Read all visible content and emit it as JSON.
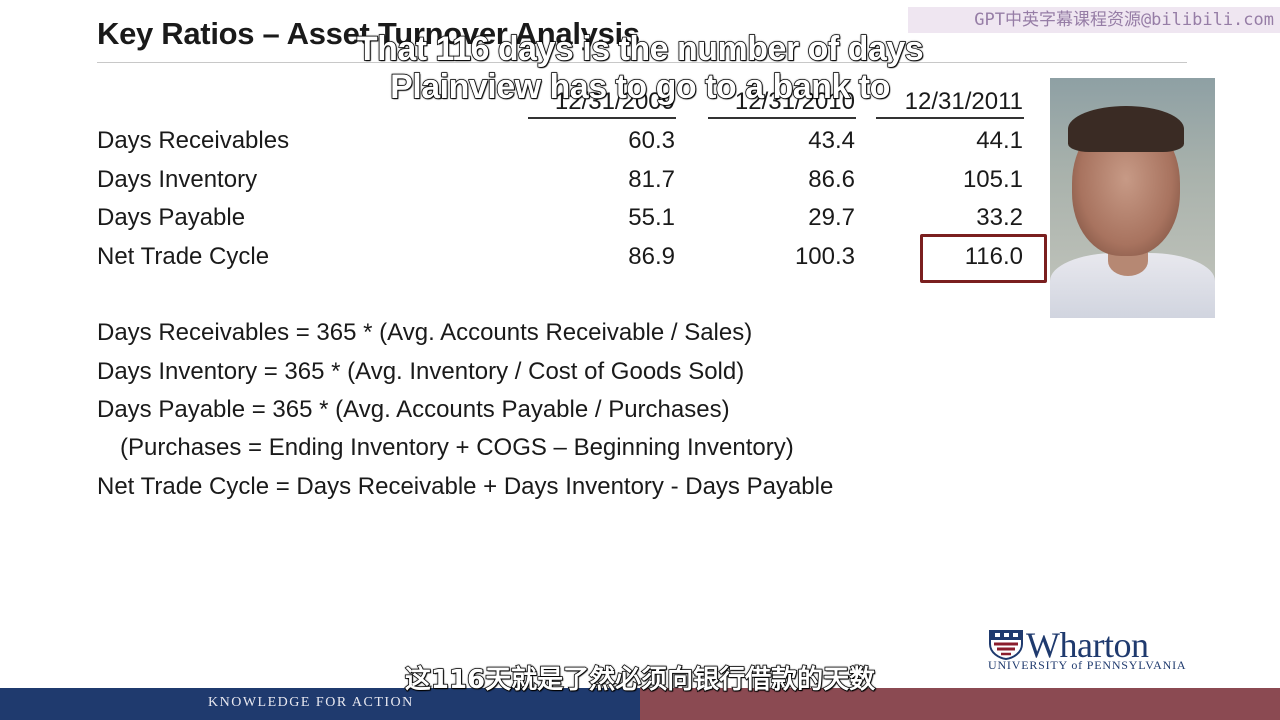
{
  "slide": {
    "title": "Key Ratios – Asset Turnover Analysis"
  },
  "watermark": "GPT中英字幕课程资源@bilibili.com",
  "captions": {
    "english_line_1": "That 116 days is the number of days",
    "english_line_2": "Plainview has to go to a bank to",
    "chinese": "这116天就是了然必须向银行借款的天数"
  },
  "table": {
    "columns": [
      "12/31/2009",
      "12/31/2010",
      "12/31/2011"
    ],
    "rows": [
      {
        "label": "Days Receivables",
        "values": [
          "60.3",
          "43.4",
          "44.1"
        ]
      },
      {
        "label": "Days Inventory",
        "values": [
          "81.7",
          "86.6",
          "105.1"
        ]
      },
      {
        "label": "Days Payable",
        "values": [
          "55.1",
          "29.7",
          "33.2"
        ]
      },
      {
        "label": "Net Trade Cycle",
        "values": [
          "86.9",
          "100.3",
          "116.0"
        ]
      }
    ],
    "highlighted_cell": "116.0"
  },
  "formulas": [
    "Days Receivables =  365 * (Avg. Accounts Receivable / Sales)",
    "Days Inventory = 365 * (Avg. Inventory / Cost of Goods Sold)",
    "Days Payable = 365 * (Avg. Accounts Payable / Purchases)",
    "(Purchases = Ending Inventory + COGS – Beginning Inventory)",
    "Net Trade Cycle = Days Receivable + Days Inventory - Days Payable"
  ],
  "logo": {
    "wordmark": "Wharton",
    "subline": "UNIVERSITY of PENNSYLVANIA"
  },
  "footer": {
    "tagline": "KNOWLEDGE FOR ACTION"
  },
  "colors": {
    "navy": "#1f3a6e",
    "maroon": "#8b4a52",
    "highlight_border": "#7a1f1f"
  }
}
